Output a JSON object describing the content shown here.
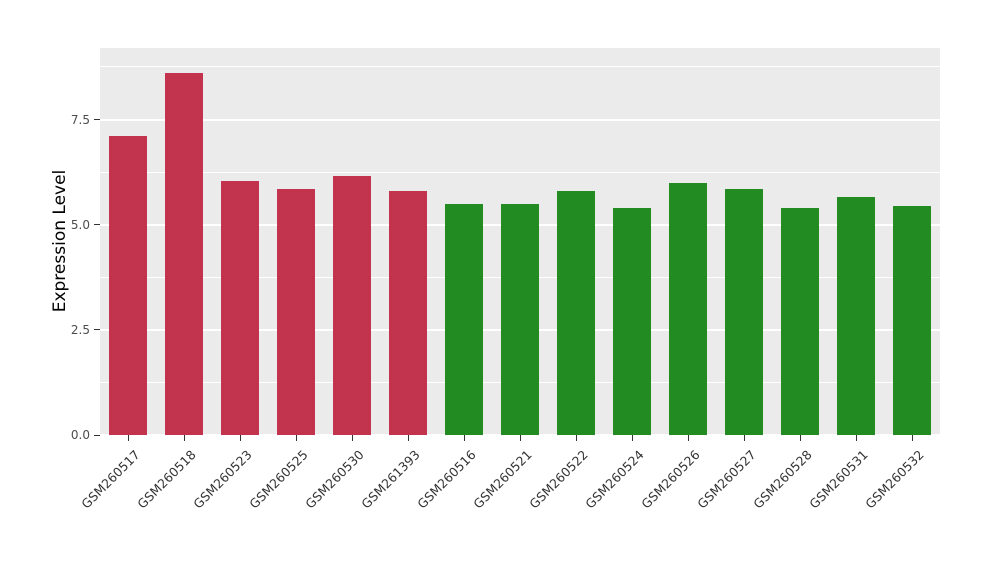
{
  "chart_data": {
    "type": "bar",
    "title": "",
    "xlabel": "",
    "ylabel": "Expression Level",
    "ylim": [
      0,
      9.2
    ],
    "yticks": [
      0,
      2.5,
      5.0,
      7.5
    ],
    "ytick_labels": [
      "0.0",
      "2.5",
      "5.0",
      "7.5"
    ],
    "minor_gridlines": [
      1.25,
      3.75,
      6.25,
      8.75
    ],
    "grid": "on",
    "legend_position": "none",
    "panel_background": "#EBEBEB",
    "gridline_color": "#FFFFFF",
    "categories": [
      "GSM260517",
      "GSM260518",
      "GSM260523",
      "GSM260525",
      "GSM260530",
      "GSM261393",
      "GSM260516",
      "GSM260521",
      "GSM260522",
      "GSM260524",
      "GSM260526",
      "GSM260527",
      "GSM260528",
      "GSM260531",
      "GSM260532"
    ],
    "values": [
      7.1,
      8.6,
      6.05,
      5.85,
      6.15,
      5.8,
      5.5,
      5.5,
      5.8,
      5.4,
      6.0,
      5.85,
      5.4,
      5.65,
      5.45
    ],
    "bar_colors": [
      "#C2334D",
      "#C2334D",
      "#C2334D",
      "#C2334D",
      "#C2334D",
      "#C2334D",
      "#228B22",
      "#228B22",
      "#228B22",
      "#228B22",
      "#228B22",
      "#228B22",
      "#228B22",
      "#228B22",
      "#228B22"
    ],
    "groups": [
      {
        "name": "red-group",
        "color": "#C2334D",
        "count": 6
      },
      {
        "name": "green-group",
        "color": "#228B22",
        "count": 9
      }
    ]
  }
}
